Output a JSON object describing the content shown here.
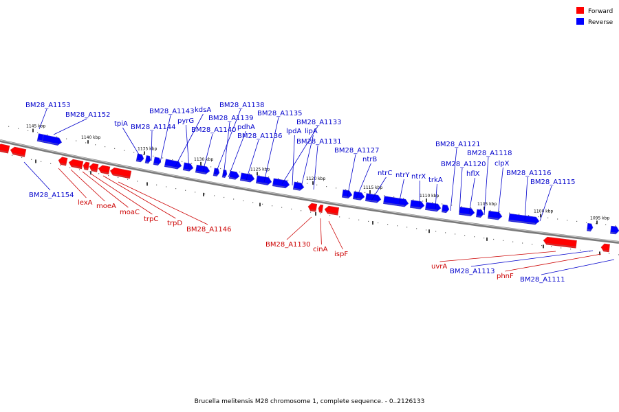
{
  "legend": [
    {
      "label": "Forward",
      "color": "#ff0000"
    },
    {
      "label": "Reverse",
      "color": "#0000ff"
    }
  ],
  "caption": "Brucella melitensis M28 chromosome 1, complete sequence. - 0..2126133",
  "ticks": [
    "1145 kbp",
    "1140 kbp",
    "1135 kbp",
    "1130 kbp",
    "1125 kbp",
    "1120 kbp",
    "1115 kbp",
    "1110 kbp",
    "1105 kbp",
    "1100 kbp",
    "1095 kbp"
  ],
  "genes_forward": [
    "lexA",
    "moeA",
    "moaC",
    "trpC",
    "trpD",
    "BM28_A1146",
    "BM28_A1130",
    "cinA",
    "ispF",
    "uvrA",
    "phnF"
  ],
  "genes_reverse": [
    "BM28_A1153",
    "BM28_A1152",
    "BM28_A1154",
    "tpiA",
    "BM28_A1144",
    "BM28_A1143",
    "kdsA",
    "pyrG",
    "BM28_A1140",
    "BM28_A1138",
    "BM28_A1139",
    "pdhA",
    "BM28_A1136",
    "BM28_A1135",
    "BM28_A1133",
    "lpdA",
    "lipA",
    "BM28_A1131",
    "BM28_A1127",
    "ntrB",
    "ntrC",
    "ntrY",
    "ntrX",
    "trkA",
    "BM28_A1121",
    "BM28_A1120",
    "hflX",
    "BM28_A1118",
    "clpX",
    "BM28_A1116",
    "BM28_A1115",
    "BM28_A1113",
    "BM28_A1111"
  ]
}
